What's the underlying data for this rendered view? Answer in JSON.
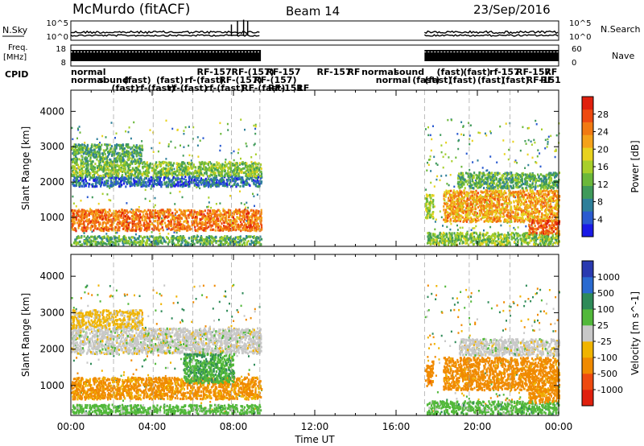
{
  "header": {
    "station": "McMurdo (fitACF)",
    "beam": "Beam 14",
    "date": "23/Sep/2016"
  },
  "left_labels": {
    "nsky": "N.Sky",
    "freq": "Freq.",
    "freq_unit": "[MHz]",
    "cpid": "CPID"
  },
  "right_labels": {
    "nsearch": "N.Search",
    "nave": "Nave"
  },
  "noise_ticks": [
    "10^5",
    "10^0"
  ],
  "freq_ticks": [
    "18",
    "8"
  ],
  "nave_ticks": [
    "60",
    "0"
  ],
  "cpid_labels": [
    {
      "t": 0.0,
      "row": 1,
      "text": "normal"
    },
    {
      "t": 0.0,
      "row": 2,
      "text": "normal"
    },
    {
      "t": 1.35,
      "row": 2,
      "text": "sound"
    },
    {
      "t": 2.0,
      "row": 3,
      "text": "(fast)"
    },
    {
      "t": 2.6,
      "row": 2,
      "text": "(fast)"
    },
    {
      "t": 3.2,
      "row": 3,
      "text": "rf-(fast)"
    },
    {
      "t": 4.2,
      "row": 2,
      "text": "(fast)"
    },
    {
      "t": 4.8,
      "row": 3,
      "text": "rf-(fast)"
    },
    {
      "t": 5.6,
      "row": 2,
      "text": "rf-(fast)"
    },
    {
      "t": 6.2,
      "row": 1,
      "text": "RF-157"
    },
    {
      "t": 6.6,
      "row": 3,
      "text": "rf-(fast)"
    },
    {
      "t": 7.3,
      "row": 2,
      "text": "RF-(157)"
    },
    {
      "t": 7.9,
      "row": 1,
      "text": "RF-(157)"
    },
    {
      "t": 8.4,
      "row": 3,
      "text": "RF-(fast)"
    },
    {
      "t": 9.0,
      "row": 2,
      "text": "RF-(157)"
    },
    {
      "t": 9.6,
      "row": 1,
      "text": "RF-157"
    },
    {
      "t": 9.7,
      "row": 3,
      "text": "RF-151"
    },
    {
      "t": 11.1,
      "row": 3,
      "text": "RF"
    },
    {
      "t": 12.1,
      "row": 1,
      "text": "RF-157"
    },
    {
      "t": 13.6,
      "row": 1,
      "text": "RF"
    },
    {
      "t": 14.3,
      "row": 1,
      "text": "normal"
    },
    {
      "t": 15.0,
      "row": 2,
      "text": "normal"
    },
    {
      "t": 15.9,
      "row": 1,
      "text": "sound"
    },
    {
      "t": 16.8,
      "row": 2,
      "text": "(fast)"
    },
    {
      "t": 17.4,
      "row": 2,
      "text": "(fast)"
    },
    {
      "t": 18.0,
      "row": 1,
      "text": "(fast)"
    },
    {
      "t": 18.6,
      "row": 2,
      "text": "(fast)"
    },
    {
      "t": 19.3,
      "row": 1,
      "text": "(fast)"
    },
    {
      "t": 20.0,
      "row": 2,
      "text": "(fast)"
    },
    {
      "t": 20.6,
      "row": 1,
      "text": "rf-157"
    },
    {
      "t": 21.2,
      "row": 2,
      "text": "(fast)"
    },
    {
      "t": 21.9,
      "row": 1,
      "text": "RF-157"
    },
    {
      "t": 22.4,
      "row": 2,
      "text": "RF-151"
    },
    {
      "t": 23.3,
      "row": 1,
      "text": "RF"
    },
    {
      "t": 23.1,
      "row": 2,
      "text": "RF"
    }
  ],
  "chart_data": [
    {
      "type": "heatmap",
      "parameter": "Power",
      "ylabel": "Slant Range [km]",
      "xlim": [
        0,
        24
      ],
      "ylim": [
        180,
        4600
      ],
      "yticks": [
        1000,
        2000,
        3000,
        4000
      ],
      "colorbar": {
        "label": "Power [dB]",
        "range": [
          0,
          32
        ],
        "ticks": [
          4,
          8,
          12,
          16,
          20,
          24,
          28
        ],
        "colors": [
          "#1a1ae6",
          "#2a5ad0",
          "#2e7f9a",
          "#3f9a5a",
          "#6bb83a",
          "#a8cf2a",
          "#e8d21e",
          "#f5a21a",
          "#f27a12",
          "#ee4a10",
          "#e0200e"
        ]
      },
      "data_intervals_ut": [
        [
          0.0,
          9.35
        ],
        [
          17.4,
          24.0
        ]
      ],
      "bands": [
        {
          "t": [
            0.0,
            9.35
          ],
          "range": [
            650,
            1250
          ],
          "value": 25
        },
        {
          "t": [
            0.0,
            9.35
          ],
          "range": [
            1900,
            2200
          ],
          "value": 6
        },
        {
          "t": [
            0.0,
            9.35
          ],
          "range": [
            2200,
            2600
          ],
          "value": 14
        },
        {
          "t": [
            0.0,
            3.5
          ],
          "range": [
            2600,
            3100
          ],
          "value": 11
        },
        {
          "t": [
            0.0,
            9.35
          ],
          "range": [
            250,
            500
          ],
          "value": 12
        },
        {
          "t": [
            17.4,
            17.8
          ],
          "range": [
            1000,
            1700
          ],
          "value": 15
        },
        {
          "t": [
            18.3,
            24.0
          ],
          "range": [
            900,
            1800
          ],
          "value": 22
        },
        {
          "t": [
            17.5,
            24.0
          ],
          "range": [
            250,
            600
          ],
          "value": 14
        },
        {
          "t": [
            19.0,
            24.0
          ],
          "range": [
            1850,
            2300
          ],
          "value": 12
        },
        {
          "t": [
            22.5,
            24.0
          ],
          "range": [
            550,
            950
          ],
          "value": 27
        }
      ]
    },
    {
      "type": "heatmap",
      "parameter": "Velocity",
      "ylabel": "Slant Range [km]",
      "xlabel": "Time UT",
      "xlim": [
        0,
        24
      ],
      "ylim": [
        180,
        4600
      ],
      "xticks": [
        "00:00",
        "04:00",
        "08:00",
        "12:00",
        "16:00",
        "20:00",
        "00:00"
      ],
      "yticks": [
        1000,
        2000,
        3000,
        4000
      ],
      "colorbar": {
        "label": "Velocity [m s^-1]",
        "ticks": [
          "1000",
          "500",
          "100",
          "25",
          "-25",
          "-100",
          "-500",
          "-1000"
        ],
        "colors": [
          "#2a3ab0",
          "#2a6ad0",
          "#2e8a58",
          "#52b83a",
          "#c8c8c8",
          "#f0b400",
          "#f08a00",
          "#ee4a10",
          "#e0200e"
        ]
      },
      "data_intervals_ut": [
        [
          0.0,
          9.35
        ],
        [
          17.4,
          24.0
        ]
      ],
      "bands": [
        {
          "t": [
            0.0,
            9.35
          ],
          "range": [
            650,
            1250
          ],
          "value": -150
        },
        {
          "t": [
            0.0,
            9.35
          ],
          "range": [
            1900,
            2600
          ],
          "value": 0
        },
        {
          "t": [
            0.0,
            3.5
          ],
          "range": [
            2600,
            3100
          ],
          "value": -40
        },
        {
          "t": [
            5.5,
            8.0
          ],
          "range": [
            1100,
            1900
          ],
          "value": 80
        },
        {
          "t": [
            0.0,
            9.35
          ],
          "range": [
            250,
            500
          ],
          "value": 60
        },
        {
          "t": [
            17.4,
            17.8
          ],
          "range": [
            1000,
            1700
          ],
          "value": -300
        },
        {
          "t": [
            18.3,
            24.0
          ],
          "range": [
            900,
            1800
          ],
          "value": -250
        },
        {
          "t": [
            17.5,
            24.0
          ],
          "range": [
            250,
            600
          ],
          "value": 60
        },
        {
          "t": [
            19.0,
            24.0
          ],
          "range": [
            1850,
            2300
          ],
          "value": 0
        },
        {
          "t": [
            22.5,
            24.0
          ],
          "range": [
            550,
            950
          ],
          "value": -200
        }
      ]
    }
  ]
}
